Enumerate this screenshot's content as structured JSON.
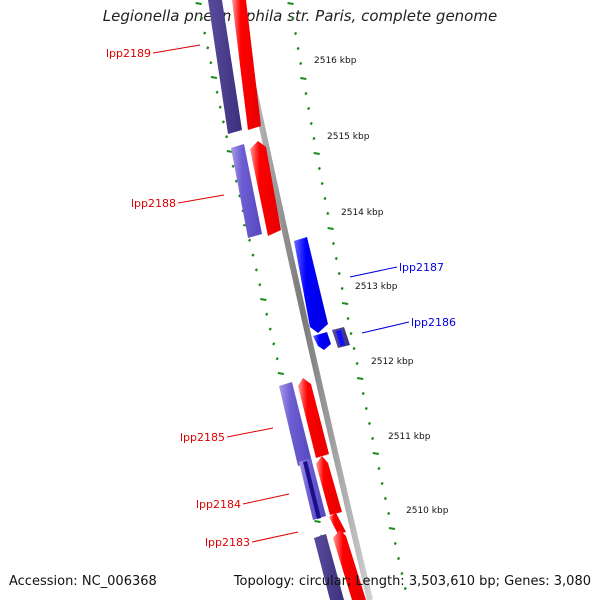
{
  "header": {
    "title": "Legionella pneumophila str. Paris, complete genome"
  },
  "footer": {
    "accession_label": "Accession:",
    "accession": "NC_006368",
    "topology_label": "Topology:",
    "topology": "circular",
    "length_label": "Length:",
    "length": "3,503,610 bp",
    "genes_label": "Genes:",
    "genes": "3,080"
  },
  "ticks": [
    {
      "label": "2516 kbp"
    },
    {
      "label": "2515 kbp"
    },
    {
      "label": "2514 kbp"
    },
    {
      "label": "2513 kbp"
    },
    {
      "label": "2512 kbp"
    },
    {
      "label": "2511 kbp"
    },
    {
      "label": "2510 kbp"
    }
  ],
  "genes": [
    {
      "name": "lpp2189",
      "strand": "reverse"
    },
    {
      "name": "lpp2188",
      "strand": "reverse"
    },
    {
      "name": "lpp2187",
      "strand": "forward"
    },
    {
      "name": "lpp2186",
      "strand": "forward"
    },
    {
      "name": "lpp2185",
      "strand": "reverse"
    },
    {
      "name": "lpp2184",
      "strand": "reverse"
    },
    {
      "name": "lpp2183",
      "strand": "reverse"
    }
  ],
  "colors": {
    "reverse_gene": "#ff0000",
    "reverse_shadow": "#7b68d8",
    "forward_gene": "#0000ff",
    "forward_shadow": "#2a1f8a",
    "backbone": "#8c8c8c",
    "dash": "#1a8a1a",
    "tick_label": "#111111"
  }
}
